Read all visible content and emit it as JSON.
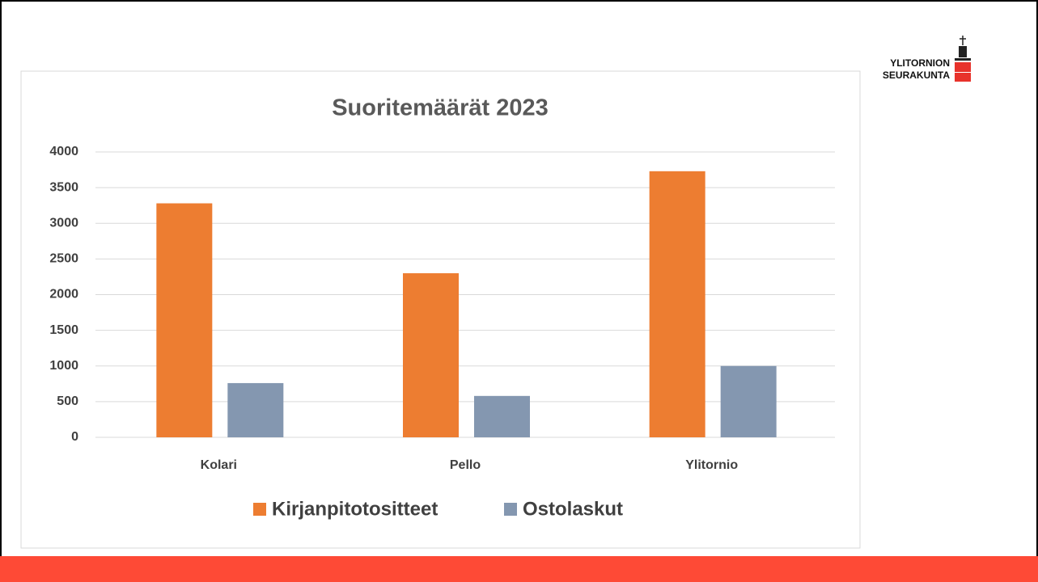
{
  "logo": [
    "YLITORNION",
    "SEURAKUNTA"
  ],
  "chart_data": {
    "type": "bar",
    "title": "Suoritemäärät 2023",
    "categories": [
      "Kolari",
      "Pello",
      "Ylitornio"
    ],
    "series": [
      {
        "name": "Kirjanpitotositteet",
        "color": "#ed7d31",
        "values": [
          3280,
          2300,
          3730
        ]
      },
      {
        "name": "Ostolaskut",
        "color": "#8497b0",
        "values": [
          760,
          580,
          1000
        ]
      }
    ],
    "ylim": [
      0,
      4000
    ],
    "yticks": [
      0,
      500,
      1000,
      1500,
      2000,
      2500,
      3000,
      3500,
      4000
    ],
    "grid": true,
    "legend": "bottom"
  }
}
